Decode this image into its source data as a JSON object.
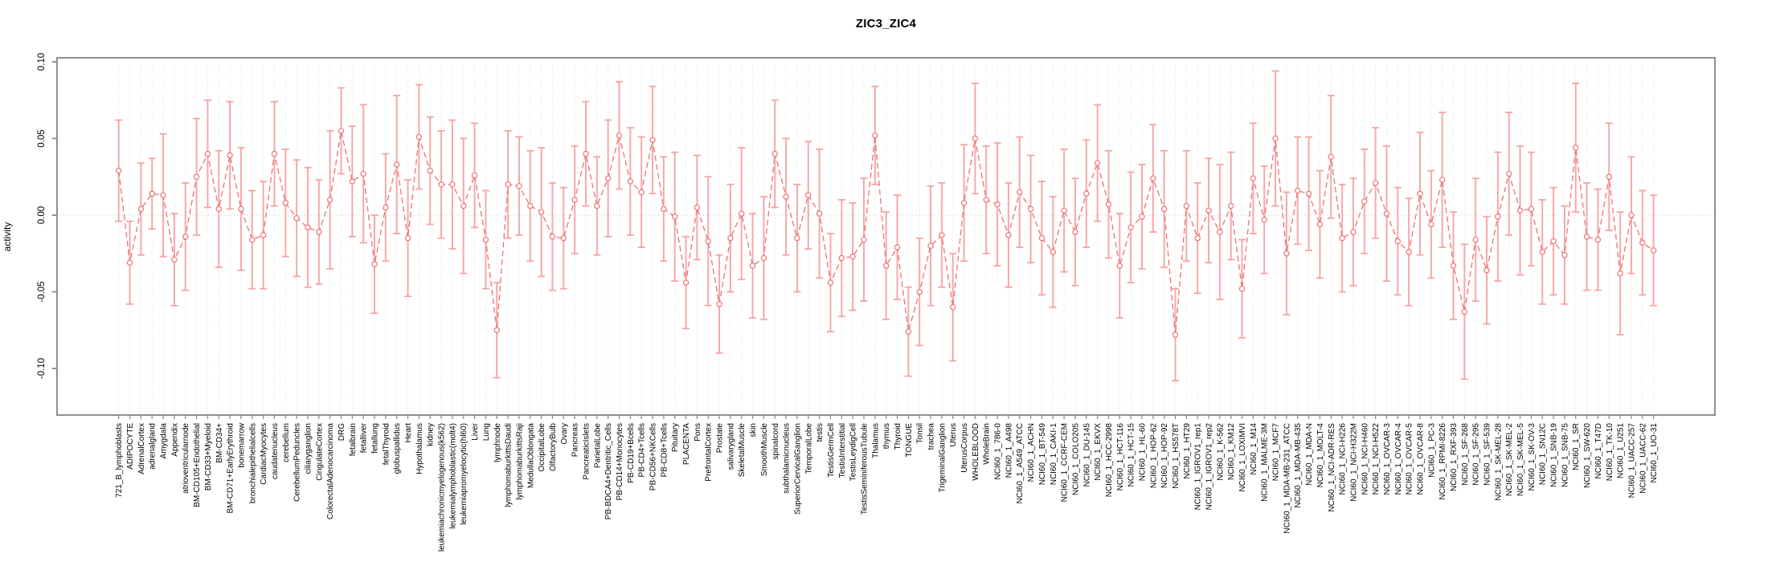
{
  "title": "ZIC3_ZIC4",
  "ylabel": "activity",
  "chart_data": {
    "type": "line",
    "subtype": "points-with-error-bars",
    "title": "ZIC3_ZIC4",
    "xlabel": "",
    "ylabel": "activity",
    "ylim": [
      -0.13,
      0.103
    ],
    "yticks": [
      0.1,
      0.05,
      0.0,
      -0.05,
      -0.1
    ],
    "grid": "vertical dotted gridline per category; dotted horizontal line at y=0",
    "legend": "none",
    "series_color": "#ee7272",
    "errorbar_color": "#f5a0a0",
    "axis_color": "#8f8f8f",
    "categories": [
      "721_B_lymphoblasts",
      "ADIPOCYTE",
      "AdrenalCortex",
      "adrenalgland",
      "Amygdala",
      "Appendix",
      "atrioventricularnode",
      "BM-CD105+Endothelial",
      "BM-CD33+Myeloid",
      "BM-CD34+",
      "BM-CD71+EarlyErythroid",
      "bonemarrow",
      "bronchialepithelialcells",
      "CardiacMyocytes",
      "caudatenucleus",
      "cerebellum",
      "CerebellumPeduncles",
      "ciliaryganglion",
      "CingulateCortex",
      "ColorectalAdenocarcinoma",
      "DRG",
      "fetalbrain",
      "fetalliver",
      "fetallung",
      "fetalThyroid",
      "globuspallidus",
      "Heart",
      "Hypothalamus",
      "kidney",
      "leukemiachronicmyelogenous(k562)",
      "leukemialymphoblastic(molt4)",
      "leukemiapromyelocytic(hl60)",
      "Liver",
      "Lung",
      "lymphnode",
      "lymphomaburkittsDaudi",
      "lymphomaburkittsRaji",
      "MedullaOblongata",
      "OccipitalLobe",
      "OlfactoryBulb",
      "Ovary",
      "Pancreas",
      "PancreaticIslets",
      "ParietalLobe",
      "PB-BDCA4+Dentritic_Cells",
      "PB-CD14+Monocytes",
      "PB-CD19+Bcells",
      "PB-CD4+Tcells",
      "PB-CD56+NKCells",
      "PB-CD8+Tcells",
      "Pituitary",
      "PLACENTA",
      "Pons",
      "PrefrontalCortex",
      "Prostate",
      "salivarygland",
      "SkeletalMuscle",
      "skin",
      "SmoothMuscle",
      "spinalcord",
      "subthalamicnucleus",
      "SuperiorCervicalGanglion",
      "TemporalLobe",
      "testis",
      "TestisGermCell",
      "TestisInterstitial",
      "TestisLeydigCell",
      "TestisSeminiferousTubule",
      "Thalamus",
      "thymus",
      "Thyroid",
      "TONGUE",
      "Tonsil",
      "trachea",
      "TrigeminalGanglion",
      "Uterus",
      "UterusCorpus",
      "WHOLEBLOOD",
      "WholeBrain",
      "NCI60_1_786-0",
      "NCI60_1_A498",
      "NCI60_1_A549_ATCC",
      "NCI60_1_ACHN",
      "NCI60_1_BT-549",
      "NCI60_1_CAKI-1",
      "NCI60_1_CCRF-CEM",
      "NCI60_1_COLO205",
      "NCI60_1_DU-145",
      "NCI60_1_EKVX",
      "NCI60_1_HCC-2998",
      "NCI60_1_HCT-116",
      "NCI60_1_HCT-15",
      "NCI60_1_HL-60",
      "NCI60_1_HOP-62",
      "NCI60_1_HOP-92",
      "NCI60_1_HS578T",
      "NCI60_1_HT29",
      "NCI60_1_IGROV1_rep1",
      "NCI60_1_IGROV1_rep2",
      "NCI60_1_K-562",
      "NCI60_1_KM12",
      "NCI60_1_LOXIMVI",
      "NCI60_1_M14",
      "NCI60_1_MALME-3M",
      "NCI60_1_MCF7",
      "NCI60_1_MDA-MB-231_ATCC",
      "NCI60_1_MDA-MB-435",
      "NCI60_1_MDA-N",
      "NCI60_1_MOLT-4",
      "NCI60_1_NCI-ADR-RES",
      "NCI60_1_NCI-H226",
      "NCI60_1_NCI-H322M",
      "NCI60_1_NCI-H460",
      "NCI60_1_NCI-H522",
      "NCI60_1_OVCAR-3",
      "NCI60_1_OVCAR-4",
      "NCI60_1_OVCAR-5",
      "NCI60_1_OVCAR-8",
      "NCI60_1_PC-3",
      "NCI60_1_RPMI-8226",
      "NCI60_1_RXF-393",
      "NCI60_1_SF-268",
      "NCI60_1_SF-295",
      "NCI60_1_SF-539",
      "NCI60_1_SK-MEL-28",
      "NCI60_1_SK-MEL-2",
      "NCI60_1_SK-MEL-5",
      "NCI60_1_SK-OV-3",
      "NCI60_1_SN12C",
      "NCI60_1_SNB-19",
      "NCI60_1_SNB-75",
      "NCI60_1_SR",
      "NCI60_1_SW-620",
      "NCI60_1_T47D",
      "NCI60_1_TK-10",
      "NCI60_1_U251",
      "NCI60_1_UACC-257",
      "NCI60_1_UACC-62",
      "NCI60_1_UO-31"
    ],
    "values": [
      0.029,
      -0.031,
      0.004,
      0.014,
      0.013,
      -0.029,
      -0.014,
      0.025,
      0.04,
      0.004,
      0.039,
      0.004,
      -0.016,
      -0.013,
      0.04,
      0.008,
      -0.002,
      -0.008,
      -0.011,
      0.01,
      0.055,
      0.022,
      0.027,
      -0.032,
      0.005,
      0.033,
      -0.015,
      0.051,
      0.029,
      0.02,
      0.02,
      0.006,
      0.026,
      -0.016,
      -0.075,
      0.02,
      0.019,
      0.006,
      0.002,
      -0.014,
      -0.015,
      0.01,
      0.04,
      0.006,
      0.024,
      0.052,
      0.022,
      0.015,
      0.049,
      0.004,
      -0.001,
      -0.044,
      0.005,
      -0.017,
      -0.058,
      -0.015,
      0.001,
      -0.033,
      -0.028,
      0.04,
      0.012,
      -0.015,
      0.013,
      0.001,
      -0.044,
      -0.028,
      -0.027,
      -0.016,
      0.052,
      -0.033,
      -0.021,
      -0.076,
      -0.05,
      -0.02,
      -0.013,
      -0.06,
      0.008,
      0.05,
      0.01,
      0.007,
      -0.013,
      0.015,
      0.004,
      -0.015,
      -0.024,
      0.003,
      -0.011,
      0.014,
      0.034,
      0.007,
      -0.033,
      -0.008,
      -0.001,
      0.024,
      0.004,
      -0.078,
      0.006,
      -0.015,
      0.003,
      -0.011,
      0.006,
      -0.048,
      0.024,
      -0.003,
      0.05,
      -0.025,
      0.016,
      0.014,
      -0.006,
      0.038,
      -0.015,
      -0.011,
      0.009,
      0.021,
      0.001,
      -0.017,
      -0.024,
      0.014,
      -0.006,
      0.023,
      -0.033,
      -0.063,
      -0.016,
      -0.036,
      -0.001,
      0.027,
      0.003,
      0.004,
      -0.024,
      -0.017,
      -0.026,
      0.044,
      -0.014,
      -0.016,
      0.025,
      -0.038,
      0.0,
      -0.018,
      -0.023
    ],
    "errors": [
      0.033,
      0.027,
      0.03,
      0.023,
      0.04,
      0.03,
      0.035,
      0.038,
      0.035,
      0.038,
      0.035,
      0.04,
      0.032,
      0.035,
      0.034,
      0.035,
      0.038,
      0.039,
      0.034,
      0.045,
      0.028,
      0.036,
      0.045,
      0.032,
      0.035,
      0.045,
      0.038,
      0.034,
      0.035,
      0.035,
      0.042,
      0.044,
      0.034,
      0.032,
      0.031,
      0.035,
      0.032,
      0.036,
      0.042,
      0.035,
      0.033,
      0.035,
      0.034,
      0.032,
      0.038,
      0.035,
      0.035,
      0.036,
      0.035,
      0.034,
      0.042,
      0.03,
      0.034,
      0.042,
      0.032,
      0.035,
      0.043,
      0.034,
      0.04,
      0.035,
      0.038,
      0.035,
      0.035,
      0.042,
      0.032,
      0.038,
      0.035,
      0.04,
      0.032,
      0.035,
      0.034,
      0.029,
      0.035,
      0.039,
      0.034,
      0.035,
      0.038,
      0.036,
      0.035,
      0.04,
      0.034,
      0.036,
      0.035,
      0.037,
      0.036,
      0.04,
      0.035,
      0.035,
      0.038,
      0.035,
      0.034,
      0.036,
      0.034,
      0.035,
      0.038,
      0.03,
      0.036,
      0.036,
      0.034,
      0.044,
      0.035,
      0.032,
      0.036,
      0.035,
      0.044,
      0.04,
      0.035,
      0.037,
      0.035,
      0.04,
      0.035,
      0.035,
      0.034,
      0.036,
      0.044,
      0.035,
      0.035,
      0.04,
      0.035,
      0.044,
      0.035,
      0.044,
      0.04,
      0.035,
      0.042,
      0.04,
      0.042,
      0.037,
      0.034,
      0.035,
      0.032,
      0.042,
      0.035,
      0.033,
      0.035,
      0.04,
      0.038,
      0.034,
      0.036
    ]
  }
}
